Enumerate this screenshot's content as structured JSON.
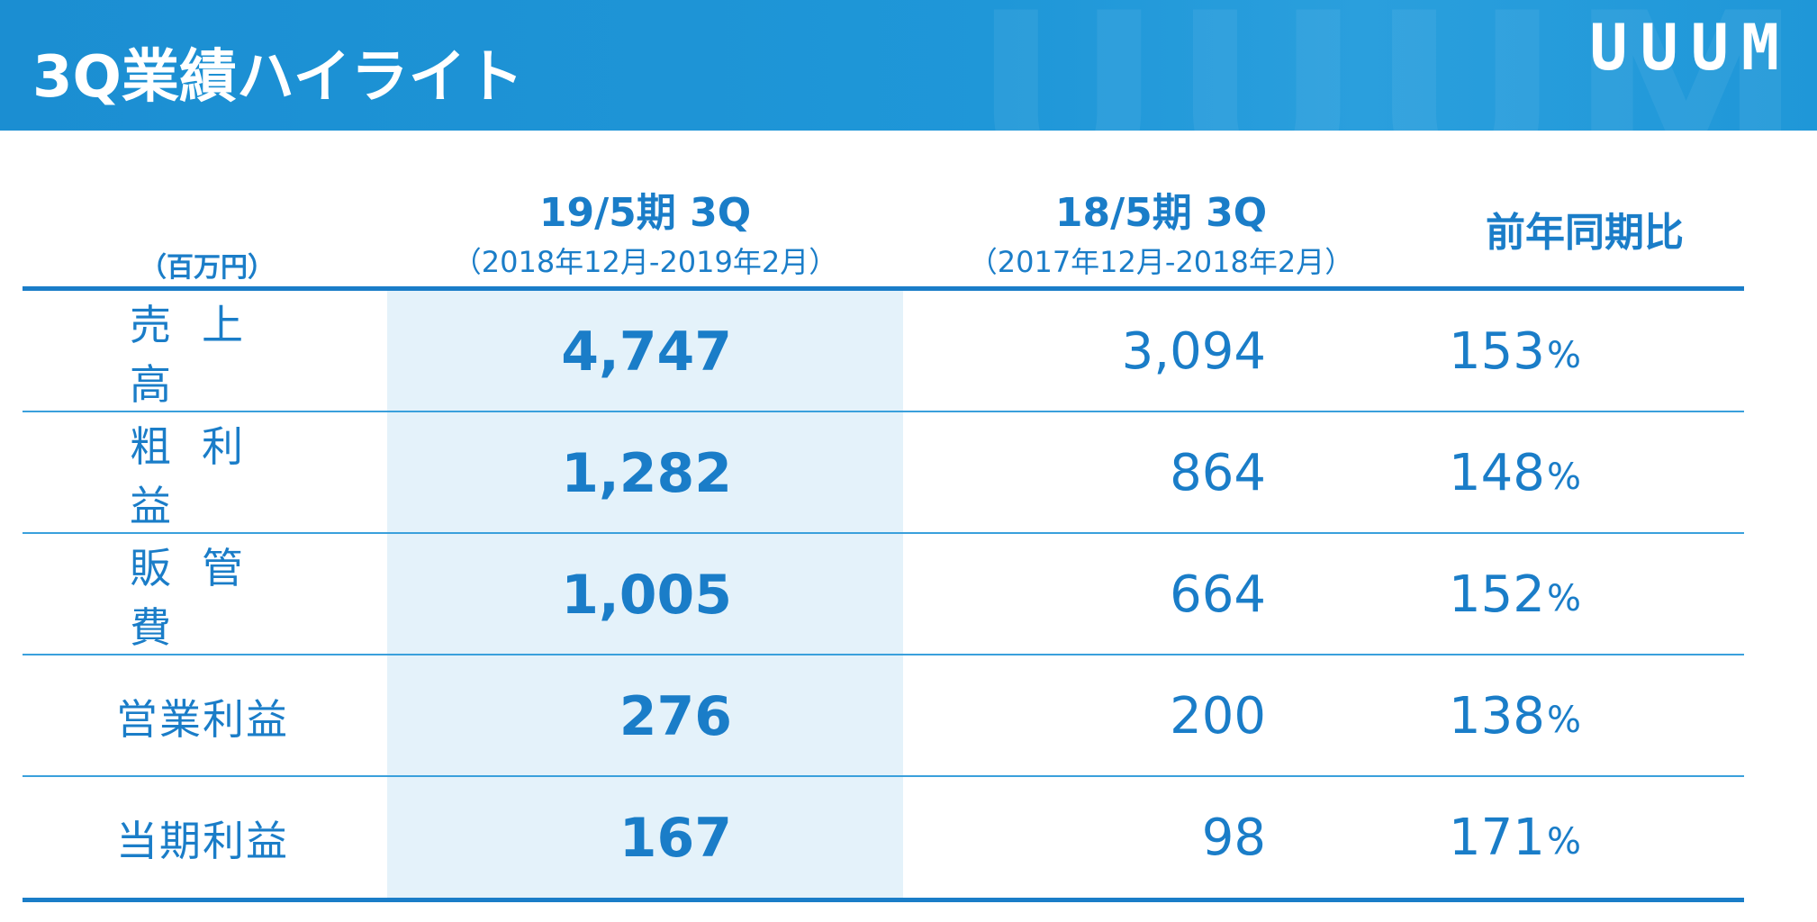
{
  "header": {
    "title": "3Q業績ハイライト",
    "logo": "UUUM"
  },
  "table": {
    "unit_label": "（百万円）",
    "columns": [
      {
        "main": "19/5期 3Q",
        "sub": "（2018年12月-2019年2月）"
      },
      {
        "main": "18/5期 3Q",
        "sub": "（2017年12月-2018年2月）"
      },
      {
        "main": "前年同期比",
        "sub": ""
      }
    ],
    "rows": [
      {
        "label": "売上高",
        "current": "4,747",
        "previous": "3,094",
        "yoy": "153",
        "pct": "%"
      },
      {
        "label": "粗利益",
        "current": "1,282",
        "previous": "864",
        "yoy": "148",
        "pct": "%"
      },
      {
        "label": "販管費",
        "current": "1,005",
        "previous": "664",
        "yoy": "152",
        "pct": "%"
      },
      {
        "label": "営業利益",
        "current": "276",
        "previous": "200",
        "yoy": "138",
        "pct": "%"
      },
      {
        "label": "当期利益",
        "current": "167",
        "previous": "98",
        "yoy": "171",
        "pct": "%"
      }
    ]
  },
  "colors": {
    "brand_blue": "#1a7dc8",
    "header_bg": "#1f97d8",
    "highlight_bg": "#e4f2fa"
  }
}
